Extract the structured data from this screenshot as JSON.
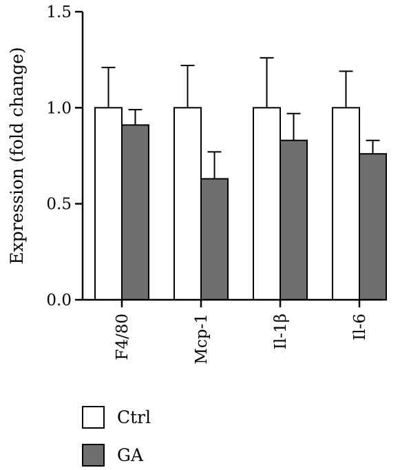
{
  "chart_data": {
    "type": "bar",
    "categories": [
      "F4/80",
      "Mcp-1",
      "Il-1β",
      "Il-6"
    ],
    "series": [
      {
        "name": "Ctrl",
        "values": [
          1.0,
          1.0,
          1.0,
          1.0
        ],
        "errors": [
          0.21,
          0.22,
          0.26,
          0.19
        ],
        "color": "#ffffff"
      },
      {
        "name": "GA",
        "values": [
          0.91,
          0.63,
          0.83,
          0.76
        ],
        "errors": [
          0.08,
          0.14,
          0.14,
          0.07
        ],
        "color": "#6e6e6e"
      }
    ],
    "title": "",
    "xlabel": "",
    "ylabel": "Expression (fold change)",
    "ylim": [
      0,
      1.5
    ],
    "yticks": [
      "0.0",
      "0.5",
      "1.0",
      "1.5"
    ],
    "error_bars": "upper",
    "grid": false,
    "legend": "bottom-left"
  }
}
